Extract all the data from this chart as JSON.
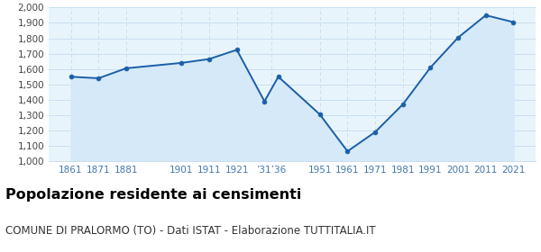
{
  "years": [
    1861,
    1871,
    1881,
    1901,
    1911,
    1921,
    1931,
    1936,
    1951,
    1961,
    1971,
    1981,
    1991,
    2001,
    2011,
    2021
  ],
  "population": [
    1550,
    1540,
    1605,
    1640,
    1665,
    1725,
    1390,
    1550,
    1305,
    1065,
    1190,
    1370,
    1610,
    1805,
    1950,
    1905
  ],
  "x_tick_labels": [
    "1861",
    "1871",
    "1881",
    "1901",
    "1911",
    "1921",
    "’31’36",
    "1951",
    "1961",
    "1971",
    "1981",
    "1991",
    "2001",
    "2011",
    "2021"
  ],
  "x_tick_positions": [
    1861,
    1871,
    1881,
    1901,
    1911,
    1921,
    1933.5,
    1951,
    1961,
    1971,
    1981,
    1991,
    2001,
    2011,
    2021
  ],
  "line_color": "#1a5fa8",
  "fill_color": "#d6e9f8",
  "marker_color": "#1a5fa8",
  "grid_color_h": "#c8dff0",
  "grid_color_v": "#c8dff0",
  "background_color": "#e8f4fc",
  "title": "Popolazione residente ai censimenti",
  "subtitle": "COMUNE DI PRALORMO (TO) - Dati ISTAT - Elaborazione TUTTITALIA.IT",
  "title_fontsize": 11.5,
  "subtitle_fontsize": 8.5,
  "ylim": [
    1000,
    2000
  ],
  "yticks": [
    1000,
    1100,
    1200,
    1300,
    1400,
    1500,
    1600,
    1700,
    1800,
    1900,
    2000
  ],
  "xlim": [
    1853,
    2029
  ]
}
